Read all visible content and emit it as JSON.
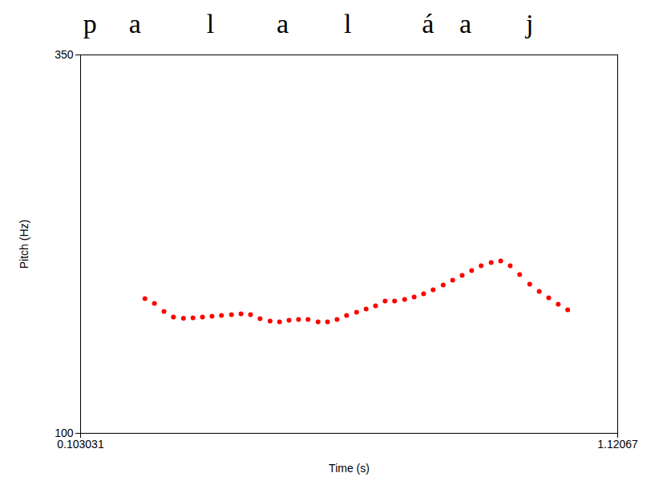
{
  "chart_data": {
    "type": "scatter",
    "x_label": "Time (s)",
    "y_label": "Pitch (Hz)",
    "xlim": [
      0.103031,
      1.12067
    ],
    "xticks": [
      0.103031,
      1.12067
    ],
    "ylim": [
      100,
      350
    ],
    "yticks": [
      100,
      350
    ],
    "marker": "circle",
    "color": "#ff0000",
    "grid": false,
    "segments": [
      {
        "label": "p",
        "time": 0.121
      },
      {
        "label": "a",
        "time": 0.206
      },
      {
        "label": "l",
        "time": 0.349
      },
      {
        "label": "a",
        "time": 0.486
      },
      {
        "label": "l",
        "time": 0.609
      },
      {
        "label": "á",
        "time": 0.761
      },
      {
        "label": "a",
        "time": 0.832
      },
      {
        "label": "j",
        "time": 0.954
      }
    ],
    "x": [
      0.225,
      0.243,
      0.261,
      0.279,
      0.298,
      0.316,
      0.334,
      0.352,
      0.37,
      0.389,
      0.407,
      0.425,
      0.443,
      0.462,
      0.48,
      0.498,
      0.516,
      0.534,
      0.553,
      0.571,
      0.589,
      0.607,
      0.626,
      0.644,
      0.662,
      0.68,
      0.698,
      0.717,
      0.735,
      0.753,
      0.771,
      0.79,
      0.808,
      0.826,
      0.844,
      0.862,
      0.881,
      0.899,
      0.917,
      0.935,
      0.954,
      0.972,
      0.99,
      1.008,
      1.026
    ],
    "values": [
      189.0,
      185.8,
      180.5,
      176.8,
      176.0,
      176.3,
      176.8,
      177.3,
      177.8,
      178.4,
      178.9,
      178.4,
      175.7,
      174.1,
      173.6,
      174.7,
      175.2,
      175.2,
      173.6,
      173.6,
      175.2,
      177.8,
      180.0,
      182.1,
      184.2,
      187.4,
      187.4,
      188.4,
      190.0,
      192.1,
      194.8,
      198.0,
      201.2,
      204.3,
      207.5,
      210.7,
      212.8,
      213.9,
      210.7,
      204.9,
      198.5,
      193.7,
      189.5,
      185.3,
      181.6
    ]
  }
}
